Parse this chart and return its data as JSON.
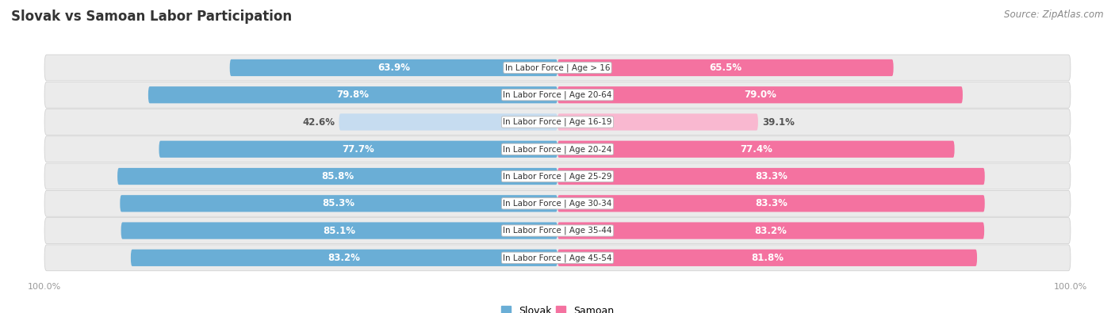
{
  "title": "Slovak vs Samoan Labor Participation",
  "source": "Source: ZipAtlas.com",
  "categories": [
    "In Labor Force | Age > 16",
    "In Labor Force | Age 20-64",
    "In Labor Force | Age 16-19",
    "In Labor Force | Age 20-24",
    "In Labor Force | Age 25-29",
    "In Labor Force | Age 30-34",
    "In Labor Force | Age 35-44",
    "In Labor Force | Age 45-54"
  ],
  "slovak_values": [
    63.9,
    79.8,
    42.6,
    77.7,
    85.8,
    85.3,
    85.1,
    83.2
  ],
  "samoan_values": [
    65.5,
    79.0,
    39.1,
    77.4,
    83.3,
    83.3,
    83.2,
    81.8
  ],
  "slovak_color": "#6aaed6",
  "slovak_color_light": "#c6dcf0",
  "samoan_color": "#f472a0",
  "samoan_color_light": "#f9b8d0",
  "row_bg_color": "#ebebeb",
  "text_color_dark": "#555555",
  "text_color_white": "#ffffff",
  "label_fontsize": 8.5,
  "title_fontsize": 12,
  "source_fontsize": 8.5,
  "axis_label_fontsize": 8,
  "legend_fontsize": 9,
  "max_value": 100.0
}
